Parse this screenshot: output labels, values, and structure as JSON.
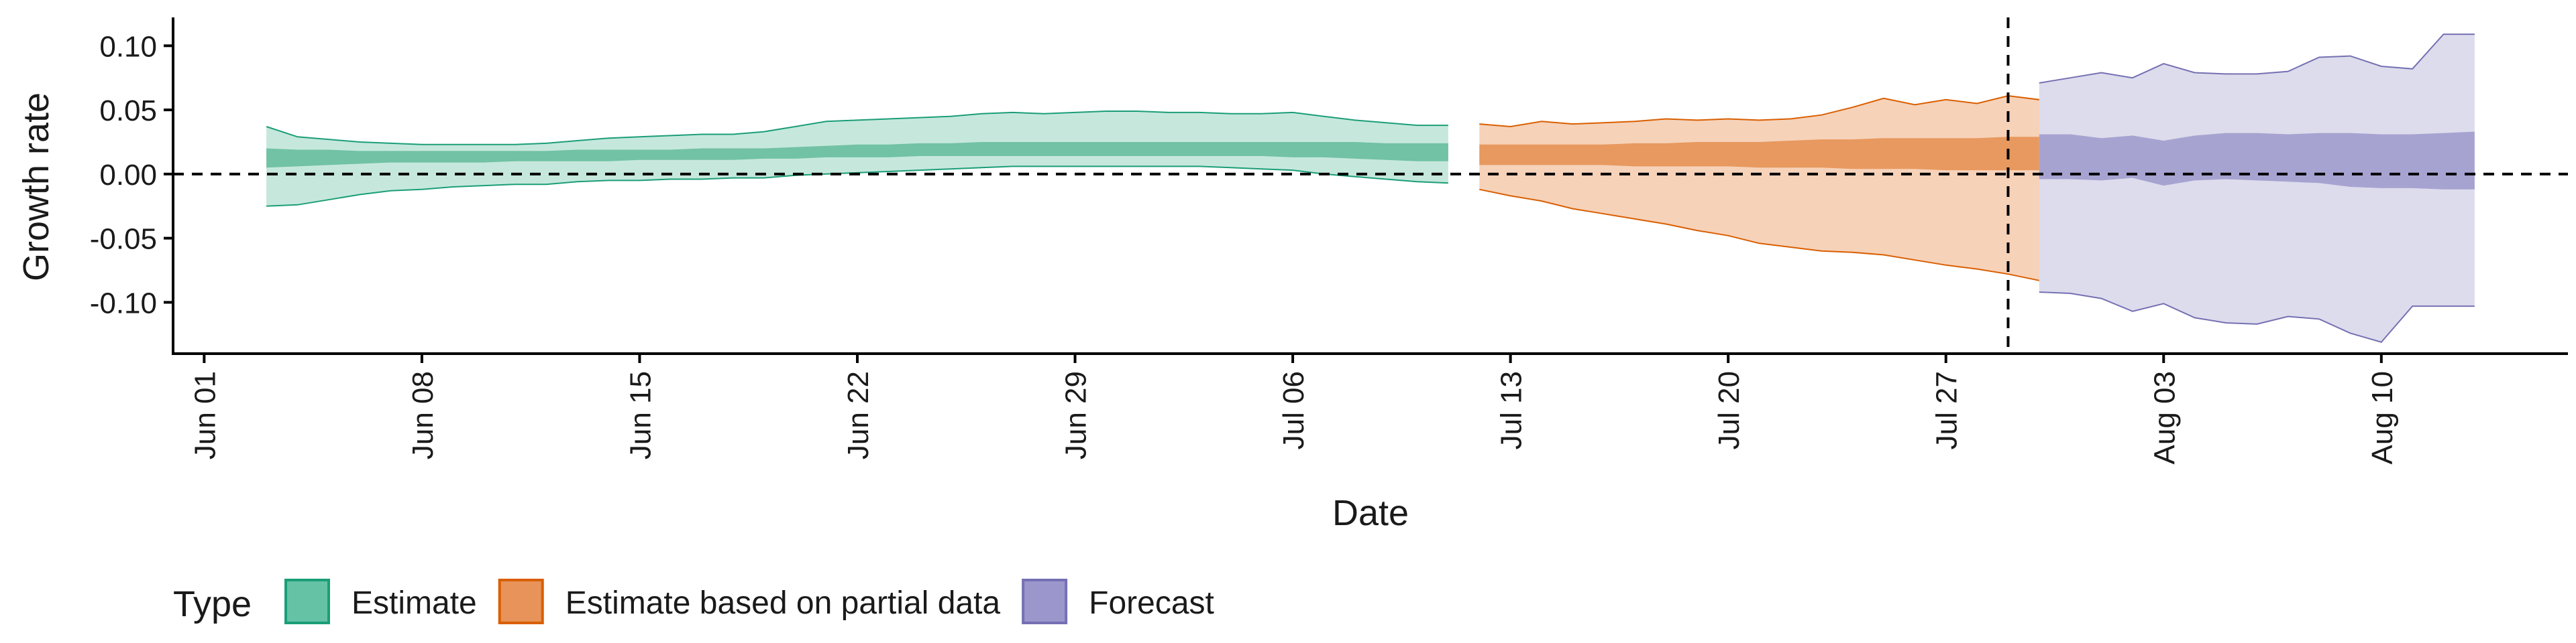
{
  "chart_data": {
    "type": "area",
    "xlabel": "Date",
    "ylabel": "Growth rate",
    "ylim": [
      -0.14,
      0.12
    ],
    "y_ticks": [
      -0.1,
      -0.05,
      0.0,
      0.05,
      0.1
    ],
    "y_tick_labels": [
      "-0.10",
      "-0.05",
      "0.00",
      "0.05",
      "0.10"
    ],
    "x_range": [
      "2020-05-31",
      "2020-08-16"
    ],
    "x_ticks": [
      "2020-06-01",
      "2020-06-08",
      "2020-06-15",
      "2020-06-22",
      "2020-06-29",
      "2020-07-06",
      "2020-07-13",
      "2020-07-20",
      "2020-07-27",
      "2020-08-03",
      "2020-08-10"
    ],
    "x_tick_labels": [
      "Jun 01",
      "Jun 08",
      "Jun 15",
      "Jun 22",
      "Jun 29",
      "Jul 06",
      "Jul 13",
      "Jul 20",
      "Jul 27",
      "Aug 03",
      "Aug 10"
    ],
    "reference_lines": {
      "horizontal_y": 0.0,
      "vertical_date": "2020-07-29"
    },
    "legend": {
      "title": "Type",
      "placement": "bottom",
      "entries": [
        {
          "label": "Estimate",
          "color": "#66c2a5"
        },
        {
          "label": "Estimate based on partial data",
          "color": "#e8935a"
        },
        {
          "label": "Forecast",
          "color": "#9b97cc"
        }
      ]
    },
    "series": [
      {
        "name": "Estimate",
        "fill_outer": "#c6e8dc",
        "fill_inner": "#72c2a5",
        "stroke": "#1b9e77",
        "start": "2020-06-03",
        "outer_upper": [
          0.037,
          0.029,
          0.027,
          0.025,
          0.024,
          0.023,
          0.023,
          0.023,
          0.023,
          0.024,
          0.026,
          0.028,
          0.029,
          0.03,
          0.031,
          0.031,
          0.033,
          0.037,
          0.041,
          0.042,
          0.043,
          0.044,
          0.045,
          0.047,
          0.048,
          0.047,
          0.048,
          0.049,
          0.049,
          0.048,
          0.048,
          0.047,
          0.047,
          0.048,
          0.045,
          0.042,
          0.04,
          0.038,
          0.038
        ],
        "inner_upper": [
          0.02,
          0.019,
          0.019,
          0.018,
          0.018,
          0.018,
          0.018,
          0.018,
          0.018,
          0.018,
          0.019,
          0.019,
          0.019,
          0.019,
          0.02,
          0.02,
          0.02,
          0.021,
          0.022,
          0.023,
          0.023,
          0.024,
          0.024,
          0.025,
          0.025,
          0.025,
          0.025,
          0.025,
          0.025,
          0.025,
          0.025,
          0.025,
          0.025,
          0.025,
          0.025,
          0.025,
          0.024,
          0.024,
          0.024
        ],
        "inner_lower": [
          0.005,
          0.006,
          0.007,
          0.008,
          0.009,
          0.009,
          0.009,
          0.009,
          0.01,
          0.01,
          0.01,
          0.01,
          0.011,
          0.011,
          0.011,
          0.011,
          0.012,
          0.012,
          0.013,
          0.013,
          0.013,
          0.014,
          0.014,
          0.014,
          0.014,
          0.014,
          0.014,
          0.014,
          0.014,
          0.014,
          0.014,
          0.014,
          0.014,
          0.013,
          0.013,
          0.012,
          0.011,
          0.01,
          0.01
        ],
        "outer_lower": [
          -0.025,
          -0.024,
          -0.02,
          -0.016,
          -0.013,
          -0.012,
          -0.01,
          -0.009,
          -0.008,
          -0.008,
          -0.006,
          -0.005,
          -0.005,
          -0.004,
          -0.004,
          -0.003,
          -0.003,
          -0.001,
          0.0,
          0.001,
          0.002,
          0.003,
          0.004,
          0.005,
          0.006,
          0.006,
          0.006,
          0.006,
          0.006,
          0.006,
          0.006,
          0.005,
          0.004,
          0.003,
          0.0,
          -0.002,
          -0.004,
          -0.006,
          -0.007
        ]
      },
      {
        "name": "Estimate based on partial data",
        "fill_outer": "#f6d2b9",
        "fill_inner": "#e8995f",
        "stroke": "#d95f02",
        "start": "2020-07-12",
        "outer_upper": [
          0.039,
          0.037,
          0.041,
          0.039,
          0.04,
          0.041,
          0.043,
          0.042,
          0.043,
          0.042,
          0.043,
          0.046,
          0.052,
          0.059,
          0.054,
          0.058,
          0.055,
          0.061,
          0.058,
          0.064,
          0.059,
          0.066
        ],
        "inner_upper": [
          0.023,
          0.023,
          0.023,
          0.023,
          0.023,
          0.024,
          0.024,
          0.025,
          0.025,
          0.025,
          0.026,
          0.027,
          0.027,
          0.028,
          0.028,
          0.028,
          0.028,
          0.029,
          0.029,
          0.029,
          0.029,
          0.03
        ],
        "inner_lower": [
          0.007,
          0.007,
          0.007,
          0.007,
          0.007,
          0.006,
          0.006,
          0.006,
          0.006,
          0.005,
          0.005,
          0.005,
          0.004,
          0.004,
          0.004,
          0.003,
          0.003,
          0.003,
          0.003,
          0.002,
          0.002,
          0.002
        ],
        "outer_lower": [
          -0.012,
          -0.017,
          -0.021,
          -0.027,
          -0.031,
          -0.035,
          -0.039,
          -0.044,
          -0.048,
          -0.054,
          -0.057,
          -0.06,
          -0.061,
          -0.063,
          -0.067,
          -0.071,
          -0.074,
          -0.078,
          -0.083,
          -0.086,
          -0.093,
          -0.093
        ]
      },
      {
        "name": "Forecast",
        "fill_outer": "#dcdcec",
        "fill_inner": "#a7a3d1",
        "stroke": "#7570b3",
        "start": "2020-07-30",
        "outer_upper": [
          0.071,
          0.075,
          0.079,
          0.075,
          0.086,
          0.079,
          0.078,
          0.078,
          0.08,
          0.091,
          0.092,
          0.084,
          0.082,
          0.109,
          0.109
        ],
        "inner_upper": [
          0.031,
          0.031,
          0.028,
          0.03,
          0.026,
          0.03,
          0.032,
          0.032,
          0.031,
          0.032,
          0.032,
          0.031,
          0.031,
          0.032,
          0.033
        ],
        "inner_lower": [
          -0.004,
          -0.004,
          -0.005,
          -0.003,
          -0.009,
          -0.005,
          -0.004,
          -0.005,
          -0.006,
          -0.007,
          -0.01,
          -0.011,
          -0.011,
          -0.012,
          -0.012
        ],
        "outer_lower": [
          -0.092,
          -0.093,
          -0.097,
          -0.107,
          -0.101,
          -0.112,
          -0.116,
          -0.117,
          -0.111,
          -0.113,
          -0.124,
          -0.131,
          -0.103,
          -0.103,
          -0.103
        ]
      }
    ]
  }
}
